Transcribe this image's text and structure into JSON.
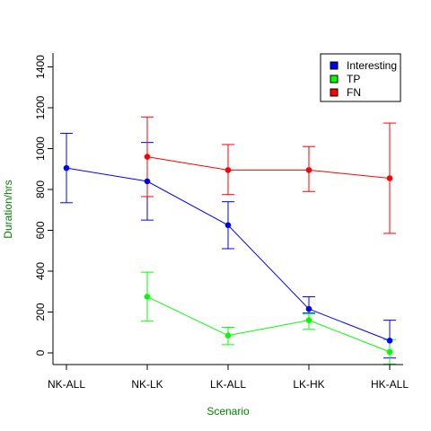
{
  "chart_data": {
    "type": "line",
    "title": "",
    "xlabel": "Scenario",
    "ylabel": "Duration/hrs",
    "axis_title_color": "#008000",
    "categories": [
      "NK-ALL",
      "NK-LK",
      "LK-ALL",
      "LK-HK",
      "HK-ALL"
    ],
    "ylim": [
      -60,
      1450
    ],
    "yticks": [
      0,
      200,
      400,
      600,
      800,
      1000,
      1200,
      1400
    ],
    "grid": false,
    "legend_position": "top-right",
    "series": [
      {
        "name": "Interesting",
        "color": "#0000ff",
        "legend_color": "#0000ff",
        "values": [
          905,
          840,
          625,
          215,
          60
        ],
        "upper": [
          1075,
          1030,
          740,
          275,
          160
        ],
        "lower": [
          735,
          650,
          510,
          195,
          -25
        ]
      },
      {
        "name": "TP",
        "color": "#00ff00",
        "legend_color": "#00ff00",
        "values": [
          null,
          275,
          85,
          160,
          5
        ],
        "upper": [
          null,
          395,
          125,
          190,
          65
        ],
        "lower": [
          null,
          155,
          40,
          115,
          -55
        ]
      },
      {
        "name": "FN",
        "color": "#ff0000",
        "legend_color": "#ff0000",
        "values": [
          null,
          960,
          895,
          895,
          855
        ],
        "upper": [
          null,
          1155,
          1020,
          1010,
          1125
        ],
        "lower": [
          null,
          765,
          775,
          790,
          585
        ]
      }
    ]
  }
}
